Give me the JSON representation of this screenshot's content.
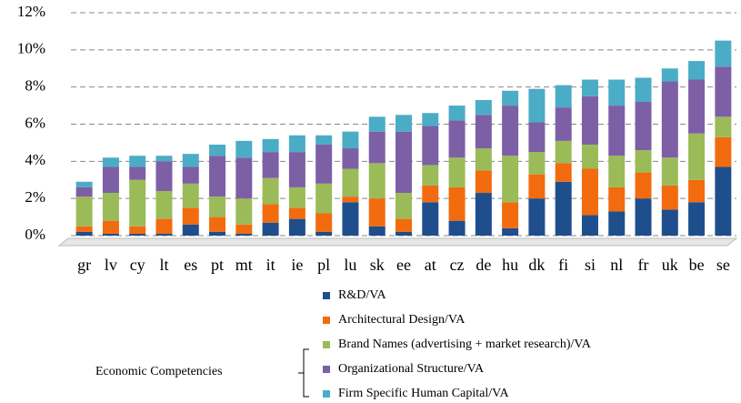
{
  "chart_data": {
    "type": "stacked_bar",
    "categories": [
      "gr",
      "lv",
      "cy",
      "lt",
      "es",
      "pt",
      "mt",
      "it",
      "ie",
      "pl",
      "lu",
      "sk",
      "ee",
      "at",
      "cz",
      "de",
      "hu",
      "dk",
      "fi",
      "si",
      "nl",
      "fr",
      "uk",
      "be",
      "se"
    ],
    "series": [
      {
        "name": "R&D/VA",
        "color": "#1f4e8c",
        "values": [
          0.2,
          0.1,
          0.1,
          0.1,
          0.6,
          0.2,
          0.1,
          0.7,
          0.9,
          0.2,
          1.8,
          0.5,
          0.2,
          1.8,
          0.8,
          2.3,
          0.4,
          2.0,
          2.9,
          1.1,
          1.3,
          2.0,
          1.4,
          1.8,
          3.7
        ]
      },
      {
        "name": "Architectural Design/VA",
        "color": "#f26b0f",
        "values": [
          0.3,
          0.7,
          0.4,
          0.8,
          0.9,
          0.8,
          0.5,
          1.0,
          0.6,
          1.0,
          0.3,
          1.5,
          0.7,
          0.9,
          1.8,
          1.2,
          1.4,
          1.3,
          1.0,
          2.5,
          1.3,
          1.4,
          1.3,
          1.2,
          1.6
        ]
      },
      {
        "name": "Brand Names (advertising + market research)/VA",
        "color": "#9bbb59",
        "values": [
          1.6,
          1.5,
          2.5,
          1.5,
          1.3,
          1.1,
          1.4,
          1.4,
          1.1,
          1.6,
          1.5,
          1.9,
          1.4,
          1.1,
          1.6,
          1.2,
          2.5,
          1.2,
          1.2,
          1.3,
          1.7,
          1.2,
          1.5,
          2.5,
          1.1
        ]
      },
      {
        "name": "Organizational Structure/VA",
        "color": "#7d5fa6",
        "values": [
          0.5,
          1.4,
          0.7,
          1.6,
          0.9,
          2.2,
          2.2,
          1.4,
          1.9,
          2.1,
          1.1,
          1.7,
          3.3,
          2.1,
          2.0,
          1.8,
          2.7,
          1.6,
          1.8,
          2.6,
          2.7,
          2.6,
          4.1,
          2.9,
          2.7
        ]
      },
      {
        "name": "Firm Specific Human Capital/VA",
        "color": "#4bacc6",
        "values": [
          0.3,
          0.5,
          0.6,
          0.3,
          0.7,
          0.6,
          0.9,
          0.7,
          0.9,
          0.5,
          0.9,
          0.8,
          0.9,
          0.7,
          0.8,
          0.8,
          0.8,
          1.8,
          1.2,
          0.9,
          1.4,
          1.3,
          0.7,
          1.0,
          1.4
        ]
      }
    ],
    "legend_group": "Economic Competencies",
    "ylim": [
      0,
      12
    ],
    "yticks": [
      {
        "value": 0,
        "label": "0%"
      },
      {
        "value": 2,
        "label": "2%"
      },
      {
        "value": 4,
        "label": "4%"
      },
      {
        "value": 6,
        "label": "6%"
      },
      {
        "value": 8,
        "label": "8%"
      },
      {
        "value": 10,
        "label": "10%"
      },
      {
        "value": 12,
        "label": "12%"
      }
    ],
    "grid": true
  }
}
